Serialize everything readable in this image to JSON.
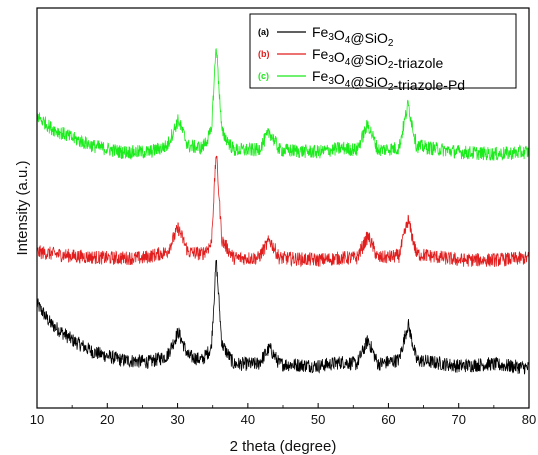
{
  "chart_data": {
    "type": "line",
    "xlabel": "2 theta (degree)",
    "ylabel": "Intensity (a.u.)",
    "xlim": [
      10,
      80
    ],
    "xticks": [
      10,
      20,
      30,
      40,
      50,
      60,
      70,
      80
    ],
    "yticks_shown": false,
    "grid": false,
    "legend_position": "top-right",
    "series": [
      {
        "name": "Fe3O4@SiO2",
        "legend_tag": "(a)",
        "color": "#000000",
        "baseline": 0.08,
        "points": [
          [
            10,
            0.26
          ],
          [
            12,
            0.21
          ],
          [
            15,
            0.17
          ],
          [
            18,
            0.14
          ],
          [
            22,
            0.12
          ],
          [
            26,
            0.115
          ],
          [
            28.5,
            0.13
          ],
          [
            30.1,
            0.19
          ],
          [
            31.5,
            0.13
          ],
          [
            33.5,
            0.12
          ],
          [
            34.8,
            0.15
          ],
          [
            35.5,
            0.37
          ],
          [
            36.3,
            0.16
          ],
          [
            38,
            0.11
          ],
          [
            41.5,
            0.11
          ],
          [
            43.1,
            0.15
          ],
          [
            44.5,
            0.11
          ],
          [
            50,
            0.105
          ],
          [
            53.5,
            0.115
          ],
          [
            55.5,
            0.11
          ],
          [
            57.1,
            0.17
          ],
          [
            58.5,
            0.11
          ],
          [
            61.5,
            0.12
          ],
          [
            62.8,
            0.21
          ],
          [
            64,
            0.12
          ],
          [
            70,
            0.105
          ],
          [
            74.5,
            0.11
          ],
          [
            80,
            0.1
          ]
        ]
      },
      {
        "name": "Fe3O4@SiO2-triazole",
        "legend_tag": "(b)",
        "color": "#e11d1d",
        "baseline": 0.34,
        "points": [
          [
            10,
            0.39
          ],
          [
            15,
            0.38
          ],
          [
            20,
            0.375
          ],
          [
            25,
            0.375
          ],
          [
            28.5,
            0.39
          ],
          [
            30.1,
            0.45
          ],
          [
            31.5,
            0.39
          ],
          [
            33.5,
            0.385
          ],
          [
            34.8,
            0.41
          ],
          [
            35.5,
            0.64
          ],
          [
            36.3,
            0.42
          ],
          [
            38,
            0.375
          ],
          [
            41.5,
            0.375
          ],
          [
            43.1,
            0.42
          ],
          [
            44.5,
            0.375
          ],
          [
            50,
            0.37
          ],
          [
            53.5,
            0.375
          ],
          [
            55.5,
            0.375
          ],
          [
            57.1,
            0.43
          ],
          [
            58.5,
            0.375
          ],
          [
            61.5,
            0.38
          ],
          [
            62.8,
            0.47
          ],
          [
            64,
            0.385
          ],
          [
            70,
            0.37
          ],
          [
            75,
            0.37
          ],
          [
            80,
            0.375
          ]
        ]
      },
      {
        "name": "Fe3O4@SiO2-triazole-Pd",
        "legend_tag": "(c)",
        "color": "#1aeb1a",
        "baseline": 0.6,
        "points": [
          [
            10,
            0.73
          ],
          [
            12,
            0.7
          ],
          [
            15,
            0.675
          ],
          [
            18,
            0.655
          ],
          [
            22,
            0.64
          ],
          [
            26,
            0.64
          ],
          [
            28.5,
            0.655
          ],
          [
            30.1,
            0.72
          ],
          [
            31.5,
            0.655
          ],
          [
            33.5,
            0.65
          ],
          [
            34.8,
            0.69
          ],
          [
            35.5,
            0.91
          ],
          [
            36.3,
            0.69
          ],
          [
            38,
            0.645
          ],
          [
            41.5,
            0.645
          ],
          [
            43.1,
            0.69
          ],
          [
            44.5,
            0.645
          ],
          [
            50,
            0.64
          ],
          [
            53.5,
            0.65
          ],
          [
            55.5,
            0.645
          ],
          [
            57.1,
            0.71
          ],
          [
            58.5,
            0.645
          ],
          [
            61.5,
            0.65
          ],
          [
            62.8,
            0.76
          ],
          [
            64,
            0.655
          ],
          [
            70,
            0.64
          ],
          [
            75,
            0.635
          ],
          [
            80,
            0.64
          ]
        ]
      }
    ]
  }
}
